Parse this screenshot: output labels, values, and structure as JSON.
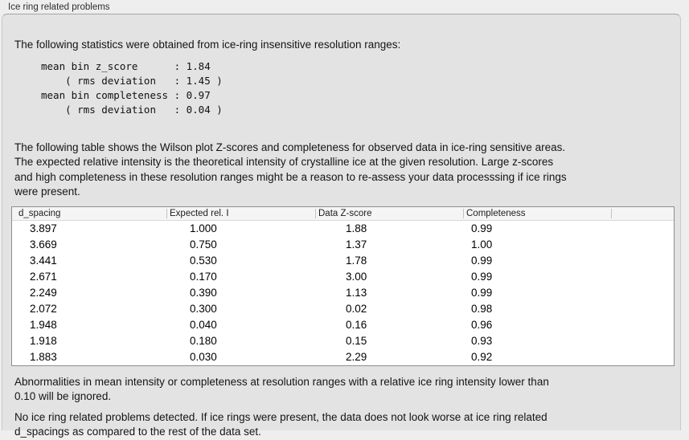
{
  "group": {
    "title": "Ice ring related problems"
  },
  "intro": "The following statistics were obtained from ice-ring insensitive resolution ranges:",
  "stats_block": "mean bin z_score      : 1.84\n    ( rms deviation   : 1.45 )\nmean bin completeness : 0.97\n    ( rms deviation   : 0.04 )",
  "table_description": "The following table shows the Wilson plot Z-scores and completeness for observed data in ice-ring sensitive areas.\nThe expected relative intensity is the theoretical intensity of crystalline ice at the given resolution. Large z-scores\nand high completeness in these resolution ranges might be a reason to re-assess your data processsing if ice rings\nwere present.",
  "table": {
    "columns": [
      "d_spacing",
      "Expected rel. I",
      "Data Z-score",
      "Completeness",
      ""
    ],
    "rows": [
      [
        "3.897",
        "1.000",
        "1.88",
        "0.99"
      ],
      [
        "3.669",
        "0.750",
        "1.37",
        "1.00"
      ],
      [
        "3.441",
        "0.530",
        "1.78",
        "0.99"
      ],
      [
        "2.671",
        "0.170",
        "3.00",
        "0.99"
      ],
      [
        "2.249",
        "0.390",
        "1.13",
        "0.99"
      ],
      [
        "2.072",
        "0.300",
        "0.02",
        "0.98"
      ],
      [
        "1.948",
        "0.040",
        "0.16",
        "0.96"
      ],
      [
        "1.918",
        "0.180",
        "0.15",
        "0.93"
      ],
      [
        "1.883",
        "0.030",
        "2.29",
        "0.92"
      ]
    ]
  },
  "ignore_note": "Abnormalities in mean intensity or completeness at resolution ranges with a relative ice ring intensity lower than\n0.10 will be ignored.",
  "conclusion": "No ice ring related problems detected. If ice rings were present, the data does not look worse at ice ring related\nd_spacings as compared to the rest of the data set.",
  "colors": {
    "panel_bg": "#e3e3e3",
    "strip_bg": "#eeeeee",
    "table_header_bg": "#f5f5f6",
    "table_border": "#8d8d8d",
    "divider": "#a6a6a6"
  }
}
